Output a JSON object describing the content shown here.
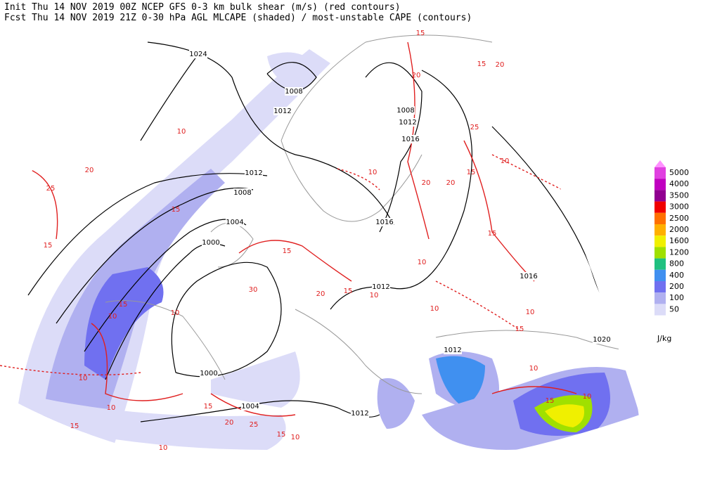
{
  "header": {
    "line1": "Init  Thu 14 NOV 2019 00Z  NCEP GFS 0-3 km bulk shear (m/s) (red contours)",
    "line2": "Fcst Thu 14 NOV 2019 21Z  0-30 hPa AGL MLCAPE (shaded) / most-unstable CAPE (contours)"
  },
  "legend": {
    "unit": "J/kg",
    "items": [
      {
        "value": 5000,
        "color": "#e040e0"
      },
      {
        "value": 4000,
        "color": "#c000c0"
      },
      {
        "value": 3500,
        "color": "#900090"
      },
      {
        "value": 3000,
        "color": "#f00000"
      },
      {
        "value": 2500,
        "color": "#ff7000"
      },
      {
        "value": 2000,
        "color": "#ffb000"
      },
      {
        "value": 1600,
        "color": "#f0f000"
      },
      {
        "value": 1200,
        "color": "#a0e000"
      },
      {
        "value": 800,
        "color": "#20c080"
      },
      {
        "value": 400,
        "color": "#4090f0"
      },
      {
        "value": 200,
        "color": "#7070f0"
      },
      {
        "value": 100,
        "color": "#b0b0f0"
      },
      {
        "value": 50,
        "color": "#dcdcf8"
      }
    ]
  },
  "isobar_labels": [
    "1024",
    "1008",
    "1012",
    "1008",
    "1012",
    "1016",
    "1012",
    "1008",
    "1004",
    "1000",
    "1016",
    "1012",
    "1016",
    "1012",
    "1000",
    "1004",
    "1012",
    "1020"
  ],
  "shear_labels": [
    "15",
    "20",
    "15",
    "20",
    "25",
    "20",
    "15",
    "20",
    "10",
    "10",
    "15",
    "10",
    "20",
    "25",
    "15",
    "15",
    "15",
    "30",
    "20",
    "15",
    "10",
    "15",
    "10",
    "10",
    "15",
    "20",
    "25",
    "15",
    "10",
    "15",
    "10",
    "10",
    "15",
    "10",
    "10",
    "15",
    "10",
    "10",
    "10",
    "10"
  ]
}
